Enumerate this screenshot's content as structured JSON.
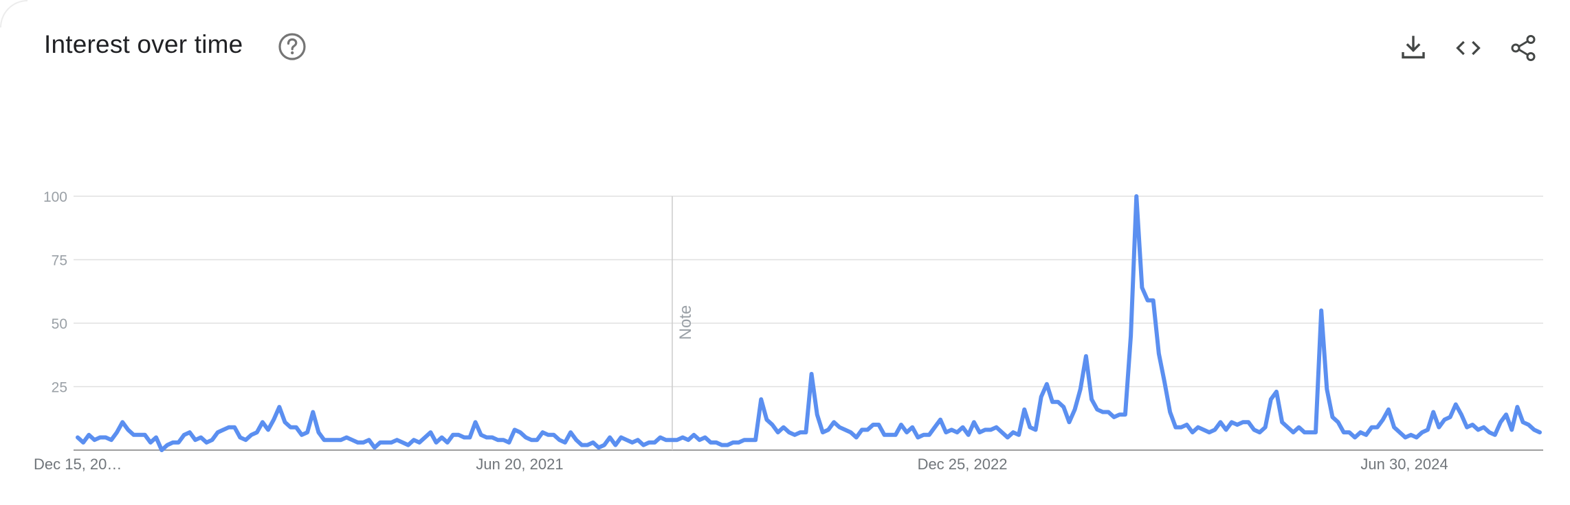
{
  "header": {
    "title": "Interest over time",
    "icons": {
      "help": "help-circle-icon",
      "download": "download-icon",
      "embed": "embed-code-icon",
      "share": "share-icon"
    }
  },
  "colors": {
    "series": "#5b8ff0",
    "grid": "#e0e0e0",
    "axis": "#9e9e9e",
    "note_line": "#cccccc",
    "title": "#202124",
    "icon": "#444746"
  },
  "chart_data": {
    "type": "line",
    "title": "Interest over time",
    "xlabel": "",
    "ylabel": "",
    "ylim": [
      0,
      100
    ],
    "grid": true,
    "legend": "none",
    "y_ticks": [
      "100",
      "75",
      "50",
      "25"
    ],
    "x_tick_labels": [
      "Dec 15, 20…",
      "Jun 20, 2021",
      "Dec 25, 2022",
      "Jun 30, 2024"
    ],
    "note_label": "Note",
    "series": [
      {
        "values": [
          5,
          3,
          6,
          4,
          5,
          5,
          4,
          7,
          11,
          8,
          6,
          6,
          6,
          3,
          5,
          0,
          2,
          3,
          3,
          6,
          7,
          4,
          5,
          3,
          4,
          7,
          8,
          9,
          9,
          5,
          4,
          6,
          7,
          11,
          8,
          12,
          17,
          11,
          9,
          9,
          6,
          7,
          15,
          7,
          4,
          4,
          4,
          4,
          5,
          4,
          3,
          3,
          4,
          1,
          3,
          3,
          3,
          4,
          3,
          2,
          4,
          3,
          5,
          7,
          3,
          5,
          3,
          6,
          6,
          5,
          5,
          11,
          6,
          5,
          5,
          4,
          4,
          3,
          8,
          7,
          5,
          4,
          4,
          7,
          6,
          6,
          4,
          3,
          7,
          4,
          2,
          2,
          3,
          1,
          2,
          5,
          2,
          5,
          4,
          3,
          4,
          2,
          3,
          3,
          5,
          4,
          4,
          4,
          5,
          4,
          6,
          4,
          5,
          3,
          3,
          2,
          2,
          3,
          3,
          4,
          4,
          4,
          20,
          12,
          10,
          7,
          9,
          7,
          6,
          7,
          7,
          30,
          14,
          7,
          8,
          11,
          9,
          8,
          7,
          5,
          8,
          8,
          10,
          10,
          6,
          6,
          6,
          10,
          7,
          9,
          5,
          6,
          6,
          9,
          12,
          7,
          8,
          7,
          9,
          6,
          11,
          7,
          8,
          8,
          9,
          7,
          5,
          7,
          6,
          16,
          9,
          8,
          21,
          26,
          19,
          19,
          17,
          11,
          16,
          24,
          37,
          20,
          16,
          15,
          15,
          13,
          14,
          14,
          45,
          100,
          64,
          59,
          59,
          38,
          27,
          15,
          9,
          9,
          10,
          7,
          9,
          8,
          7,
          8,
          11,
          8,
          11,
          10,
          11,
          11,
          8,
          7,
          9,
          20,
          23,
          11,
          9,
          7,
          9,
          7,
          7,
          7,
          55,
          24,
          13,
          11,
          7,
          7,
          5,
          7,
          6,
          9,
          9,
          12,
          16,
          9,
          7,
          5,
          6,
          5,
          7,
          8,
          15,
          9,
          12,
          13,
          18,
          14,
          9,
          10,
          8,
          9,
          7,
          6,
          11,
          14,
          8,
          17,
          11,
          10,
          8,
          7
        ]
      }
    ]
  }
}
